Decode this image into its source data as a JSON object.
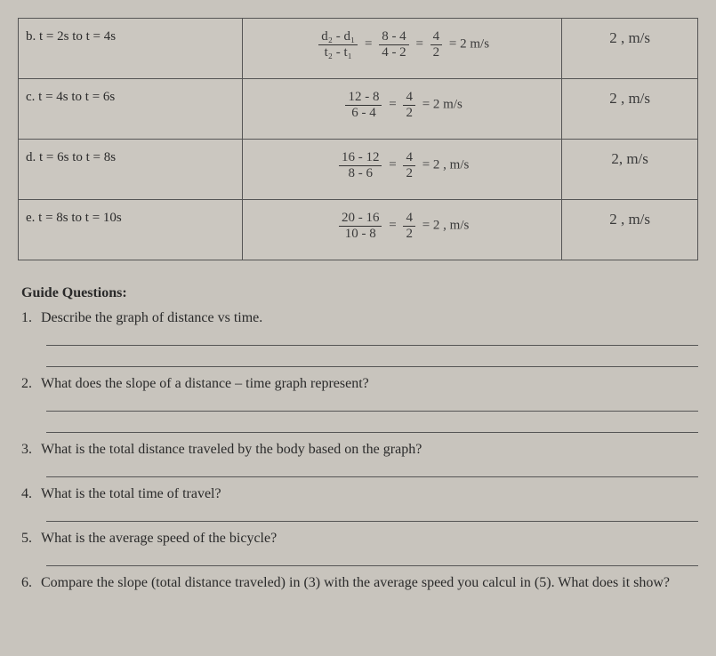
{
  "table": {
    "rows": [
      {
        "label": "b. t = 2s to t = 4s",
        "formula_top1": "d₂ - d₁",
        "formula_bot1": "t₂ - t₁",
        "eq1": "=",
        "formula_top2": "8 - 4",
        "formula_bot2": "4 - 2",
        "eq2": "=",
        "formula_top3": "4",
        "formula_bot3": "2",
        "result": "= 2 m/s",
        "answer": "2 , m/s"
      },
      {
        "label": "c. t = 4s to t = 6s",
        "formula_top2": "12 - 8",
        "formula_bot2": "6 - 4",
        "eq2": "=",
        "formula_top3": "4",
        "formula_bot3": "2",
        "result": "= 2 m/s",
        "answer": "2 , m/s"
      },
      {
        "label": "d. t = 6s to t = 8s",
        "formula_top2": "16 - 12",
        "formula_bot2": "8 - 6",
        "eq2": "=",
        "formula_top3": "4",
        "formula_bot3": "2",
        "result": "= 2 , m/s",
        "answer": "2, m/s"
      },
      {
        "label": "e. t = 8s to t = 10s",
        "formula_top2": "20 - 16",
        "formula_bot2": "10 - 8",
        "eq2": "=",
        "formula_top3": "4",
        "formula_bot3": "2",
        "result": "= 2 , m/s",
        "answer": "2 , m/s"
      }
    ]
  },
  "questions": {
    "title": "Guide Questions:",
    "items": [
      "Describe the graph of distance vs time.",
      "What does the slope of a distance – time graph represent?",
      "What is the total distance traveled by the body based on the graph?",
      "What is the total time of travel?",
      "What is the average speed of the bicycle?",
      "Compare the slope (total distance traveled) in (3) with the average speed you calcul in (5). What does it show?"
    ]
  },
  "colors": {
    "background": "#c8c4bd",
    "border": "#555555",
    "text": "#2a2a2a"
  }
}
